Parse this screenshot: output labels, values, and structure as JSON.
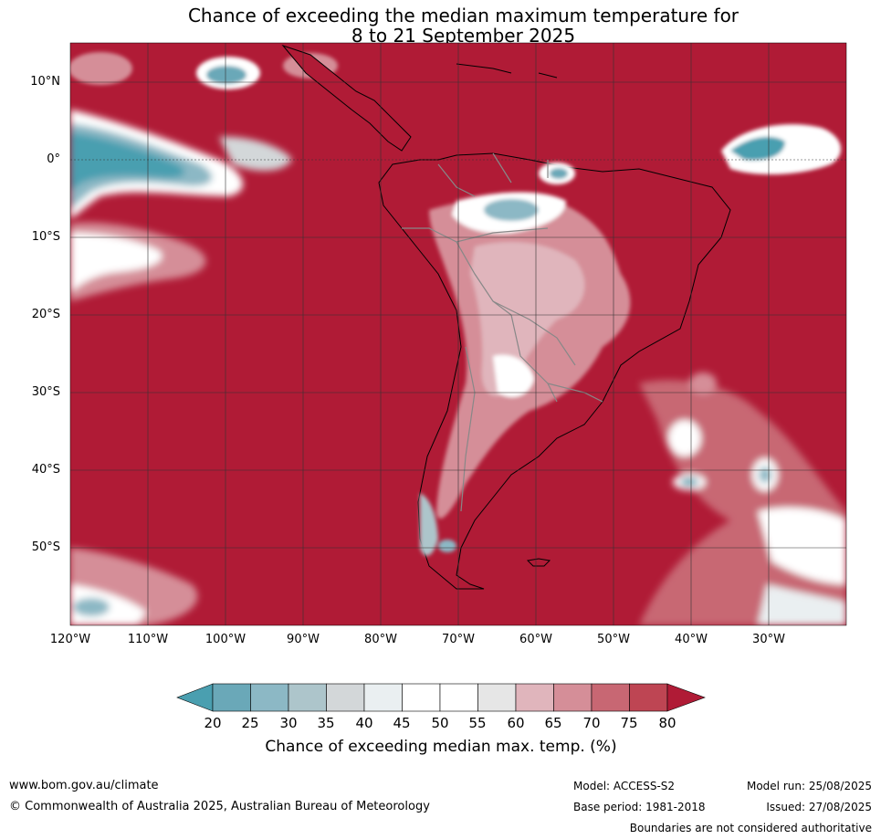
{
  "title_line1": "Chance of exceeding the median maximum temperature for",
  "title_line2": "8 to 21 September 2025",
  "map": {
    "lat_labels": [
      "10°N",
      "0°",
      "10°S",
      "20°S",
      "30°S",
      "40°S",
      "50°S"
    ],
    "lon_labels": [
      "120°W",
      "110°W",
      "100°W",
      "90°W",
      "80°W",
      "70°W",
      "60°W",
      "50°W",
      "40°W",
      "30°W"
    ],
    "ocean_color": "#b01b36",
    "grid_color": "#333333"
  },
  "colorbar": {
    "colors": [
      "#4a9fb0",
      "#6aa8b8",
      "#8cb8c5",
      "#adc5cb",
      "#d3d7d9",
      "#eaeff1",
      "#ffffff",
      "#ffffff",
      "#e6e6e6",
      "#e0b5bc",
      "#d58e98",
      "#c86773",
      "#be4553",
      "#b01b36"
    ],
    "labels": [
      "20",
      "25",
      "30",
      "35",
      "40",
      "45",
      "50",
      "55",
      "60",
      "65",
      "70",
      "75",
      "80"
    ],
    "title": "Chance of exceeding median max. temp. (%)"
  },
  "footer": {
    "website": "www.bom.gov.au/climate",
    "copyright": "© Commonwealth of Australia 2025, Australian Bureau of Meteorology",
    "model": "Model: ACCESS-S2",
    "base_period": "Base period: 1981-2018",
    "model_run": "Model run: 25/08/2025",
    "issued": "Issued: 27/08/2025",
    "disclaimer": "Boundaries are not considered authoritative"
  }
}
